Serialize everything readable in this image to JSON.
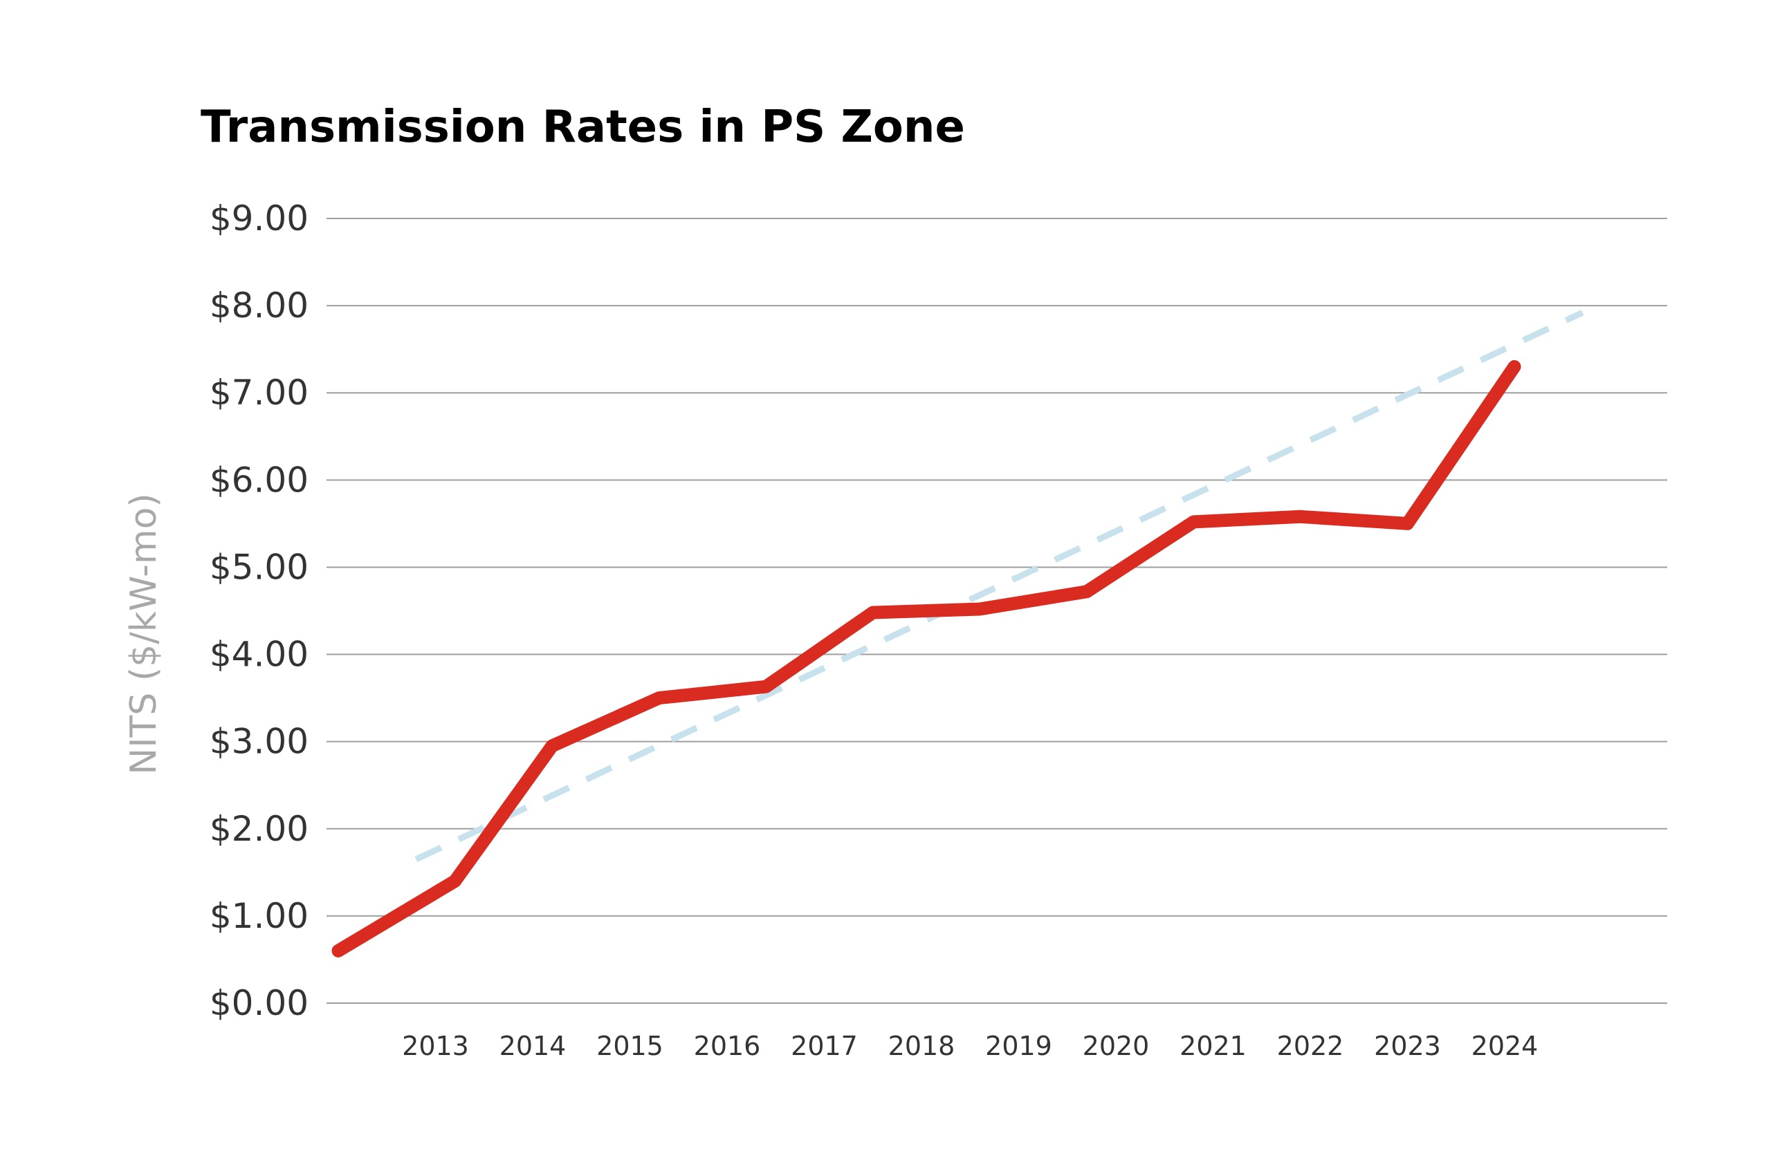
{
  "chart_data": {
    "type": "line",
    "title": "Transmission Rates in PS Zone",
    "xlabel": "",
    "ylabel": "NITS ($/kW-mo)",
    "categories": [
      "2013",
      "2014",
      "2015",
      "2016",
      "2017",
      "2018",
      "2019",
      "2020",
      "2021",
      "2022",
      "2023",
      "2024"
    ],
    "y_ticks": [
      "$0.00",
      "$1.00",
      "$2.00",
      "$3.00",
      "$4.00",
      "$5.00",
      "$6.00",
      "$7.00",
      "$8.00",
      "$9.00"
    ],
    "ylim": [
      0,
      9
    ],
    "grid": true,
    "legend": "none",
    "series": [
      {
        "style": "solid",
        "color": "#d92b20",
        "points": [
          {
            "x": 2012,
            "y": 0.6
          },
          {
            "x": 2013.2,
            "y": 1.4
          },
          {
            "x": 2014.2,
            "y": 2.95
          },
          {
            "x": 2015.3,
            "y": 3.5
          },
          {
            "x": 2016.4,
            "y": 3.63
          },
          {
            "x": 2017.5,
            "y": 4.48
          },
          {
            "x": 2018.6,
            "y": 4.52
          },
          {
            "x": 2019.7,
            "y": 4.72
          },
          {
            "x": 2020.8,
            "y": 5.52
          },
          {
            "x": 2021.9,
            "y": 5.58
          },
          {
            "x": 2023,
            "y": 5.5
          },
          {
            "x": 2024.1,
            "y": 7.3
          }
        ]
      },
      {
        "style": "dashed",
        "color": "#c7e1ed",
        "points": [
          {
            "x": 2012.8,
            "y": 1.65
          },
          {
            "x": 2024.8,
            "y": 7.92
          }
        ]
      }
    ]
  }
}
